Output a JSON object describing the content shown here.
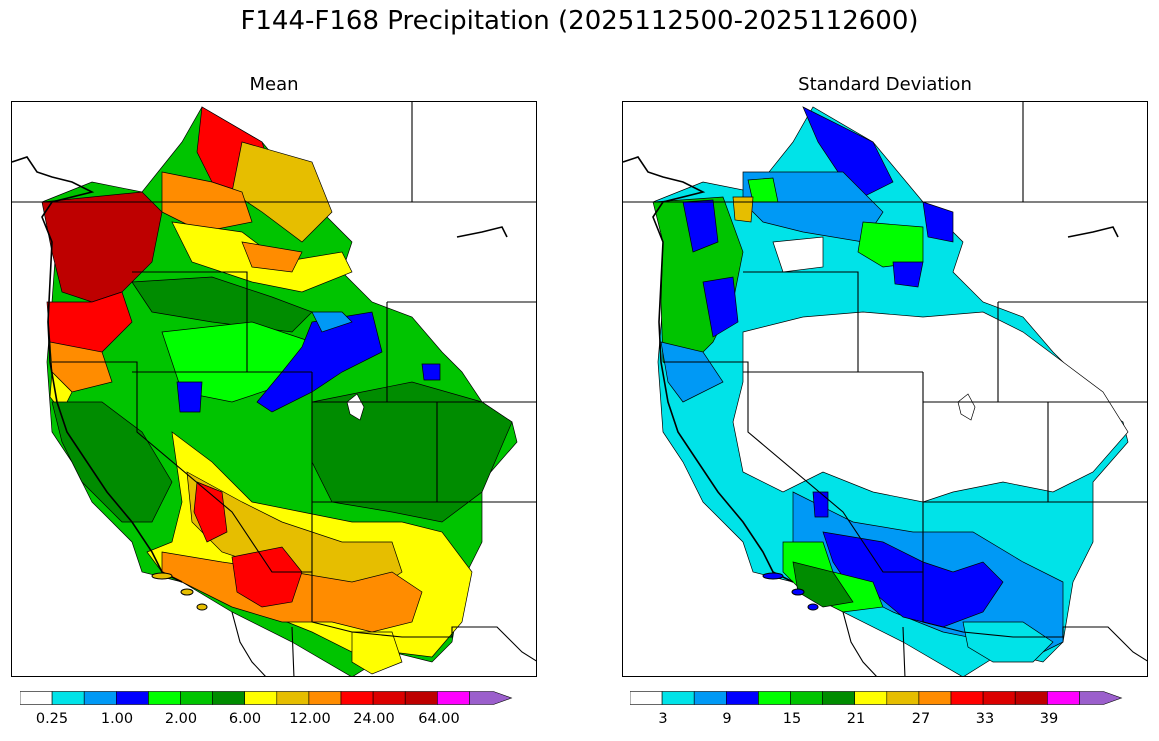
{
  "title": "F144-F168 Precipitation (2025112500-2025112600)",
  "panels": {
    "mean": {
      "subtitle": "Mean",
      "colorbar": {
        "colors": [
          "#ffffff",
          "#00e3e8",
          "#0099f5",
          "#0000ff",
          "#00ff00",
          "#00c400",
          "#008c00",
          "#ffff00",
          "#e6be00",
          "#ff8c00",
          "#ff0000",
          "#dc0000",
          "#be0000",
          "#ff00ff",
          "#9b5fcc"
        ],
        "tick_labels": [
          "0.25",
          "1.00",
          "2.00",
          "6.00",
          "12.00",
          "24.00",
          "64.00"
        ]
      }
    },
    "std": {
      "subtitle": "Standard Deviation",
      "colorbar": {
        "colors": [
          "#ffffff",
          "#00e3e8",
          "#0099f5",
          "#0000ff",
          "#00ff00",
          "#00c400",
          "#008c00",
          "#ffff00",
          "#e6be00",
          "#ff8c00",
          "#ff0000",
          "#dc0000",
          "#be0000",
          "#ff00ff",
          "#9b5fcc"
        ],
        "tick_labels": [
          "3",
          "9",
          "15",
          "21",
          "27",
          "33",
          "39"
        ]
      }
    }
  }
}
